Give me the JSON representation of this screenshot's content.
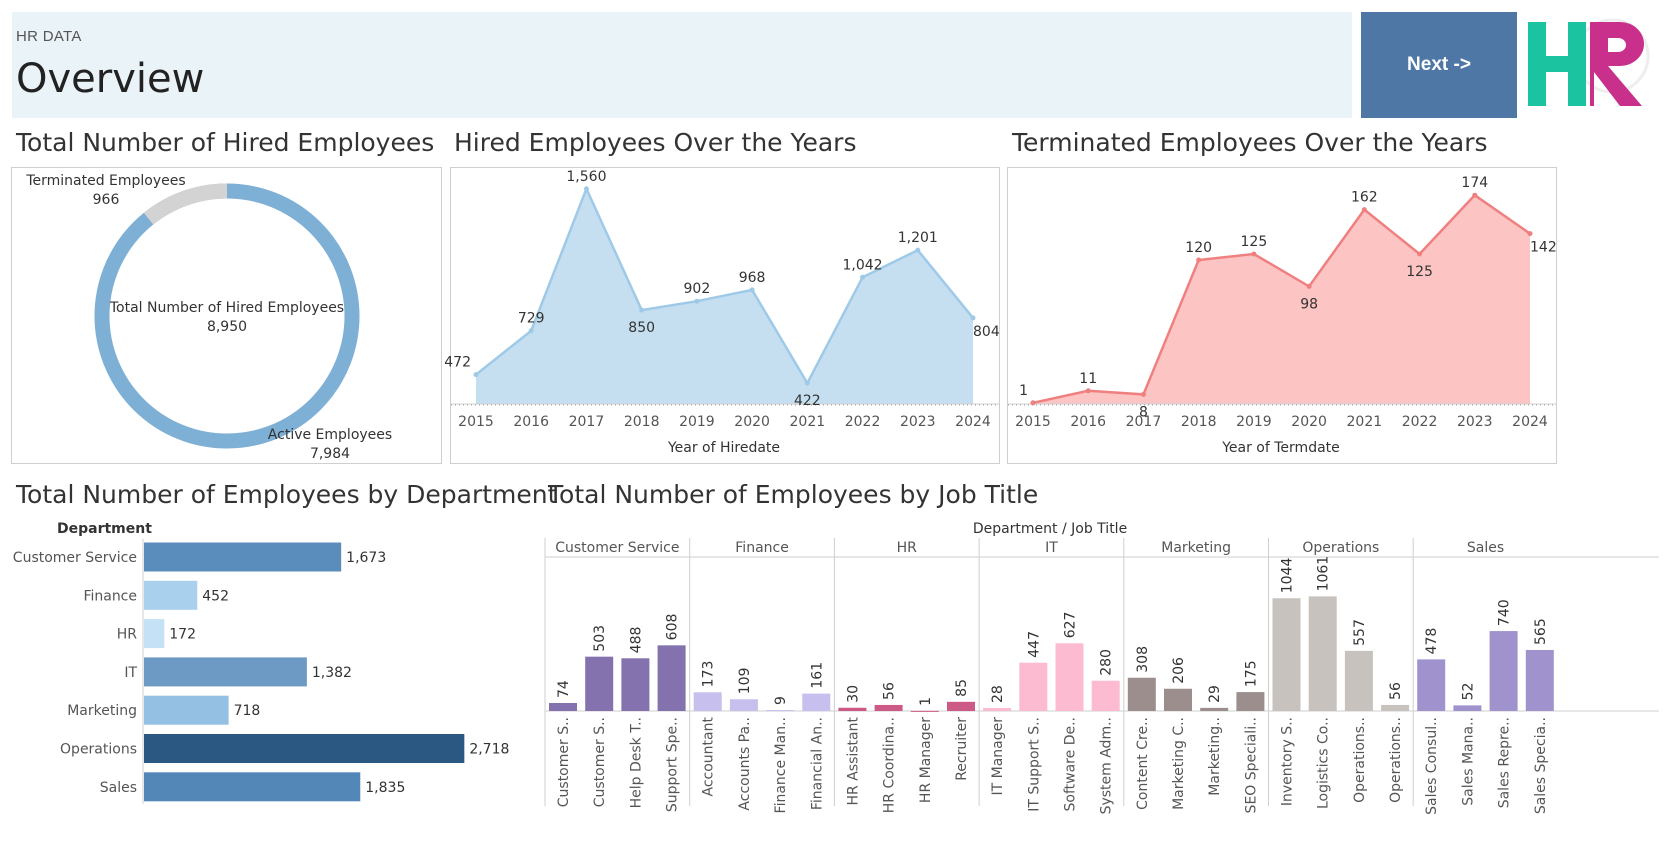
{
  "header": {
    "subtitle": "HR DATA",
    "title": "Overview",
    "next_label": "Next ->",
    "logo_text": "HR"
  },
  "sections": {
    "donut_title": "Total Number of Hired Employees",
    "hired_title": "Hired Employees Over the Years",
    "term_title": "Terminated Employees Over the Years",
    "dept_title": "Total Number of Employees by Department",
    "job_title": "Total Number of Employees by Job Title"
  },
  "colors": {
    "donut_active": "#7eb0d5",
    "donut_terminated": "#d3d3d3",
    "hired_fill": "#c6dff0",
    "hired_line": "#9ecae8",
    "term_fill": "#fdc4c4",
    "term_line": "#f08080",
    "logo_h": "#1bc3a0",
    "logo_r": "#c8308c",
    "header_bg": "#eaf3f7",
    "next_bg": "#4e77a6"
  },
  "chart_data": [
    {
      "type": "pie",
      "variant": "donut",
      "center_label": "Total Number of Hired Employees",
      "center_value": "8,950",
      "slices": [
        {
          "label": "Terminated Employees",
          "value": 966,
          "display": "966"
        },
        {
          "label": "Active Employees",
          "value": 7984,
          "display": "7,984"
        }
      ]
    },
    {
      "type": "area",
      "xlabel": "Year of Hiredate",
      "x": [
        2015,
        2016,
        2017,
        2018,
        2019,
        2020,
        2021,
        2022,
        2023,
        2024
      ],
      "values": [
        472,
        729,
        1560,
        850,
        902,
        968,
        422,
        1042,
        1201,
        804
      ],
      "labels": [
        "472",
        "729",
        "1,560",
        "850",
        "902",
        "968",
        "422",
        "1,042",
        "1,201",
        "804"
      ],
      "ylim": [
        300,
        1600
      ]
    },
    {
      "type": "area",
      "xlabel": "Year of Termdate",
      "x": [
        2015,
        2016,
        2017,
        2018,
        2019,
        2020,
        2021,
        2022,
        2023,
        2024
      ],
      "values": [
        1,
        11,
        8,
        120,
        125,
        98,
        162,
        125,
        174,
        142
      ],
      "labels": [
        "1",
        "11",
        "8",
        "120",
        "125",
        "98",
        "162",
        "125",
        "174",
        "142"
      ],
      "ylim": [
        0,
        185
      ]
    },
    {
      "type": "bar",
      "orientation": "horizontal",
      "header": "Department",
      "categories": [
        "Customer Service",
        "Finance",
        "HR",
        "IT",
        "Marketing",
        "Operations",
        "Sales"
      ],
      "values": [
        1673,
        452,
        172,
        1382,
        718,
        2718,
        1835
      ],
      "labels": [
        "1,673",
        "452",
        "172",
        "1,382",
        "718",
        "2,718",
        "1,835"
      ],
      "colors": [
        "#5b8dbc",
        "#a9d0ed",
        "#c5e1f5",
        "#6d9ac5",
        "#93c0e3",
        "#2b5783",
        "#5287b8"
      ],
      "xlim": [
        0,
        2800
      ]
    },
    {
      "type": "bar",
      "header": "Department  /  Job Title",
      "ylim": [
        0,
        1150
      ],
      "groups": [
        {
          "name": "Customer Service",
          "color": "#8372ad",
          "categories": [
            "Customer S..",
            "Customer S..",
            "Help Desk T..",
            "Support Spe.."
          ],
          "values": [
            74,
            503,
            488,
            608
          ]
        },
        {
          "name": "Finance",
          "color": "#c7bfed",
          "categories": [
            "Accountant",
            "Accounts Pa..",
            "Finance Man..",
            "Financial An.."
          ],
          "values": [
            173,
            109,
            9,
            161
          ]
        },
        {
          "name": "HR",
          "color": "#cd5a86",
          "categories": [
            "HR Assistant",
            "HR Coordina..",
            "HR Manager",
            "Recruiter"
          ],
          "values": [
            30,
            56,
            1,
            85
          ]
        },
        {
          "name": "IT",
          "color": "#fcbbd1",
          "categories": [
            "IT Manager",
            "IT Support S..",
            "Software De..",
            "System Adm.."
          ],
          "values": [
            28,
            447,
            627,
            280
          ]
        },
        {
          "name": "Marketing",
          "color": "#9b8e8c",
          "categories": [
            "Content Cre..",
            "Marketing C..",
            "Marketing..",
            "SEO Speciali.."
          ],
          "values": [
            308,
            206,
            29,
            175
          ]
        },
        {
          "name": "Operations",
          "color": "#c7c2be",
          "categories": [
            "Inventory S..",
            "Logistics Co..",
            "Operations..",
            "Operations.."
          ],
          "values": [
            1044,
            1061,
            557,
            56
          ]
        },
        {
          "name": "Sales",
          "color": "#9f92cd",
          "categories": [
            "Sales Consul..",
            "Sales Mana..",
            "Sales Repre..",
            "Sales Specia.."
          ],
          "values": [
            478,
            52,
            740,
            565
          ]
        }
      ]
    }
  ]
}
